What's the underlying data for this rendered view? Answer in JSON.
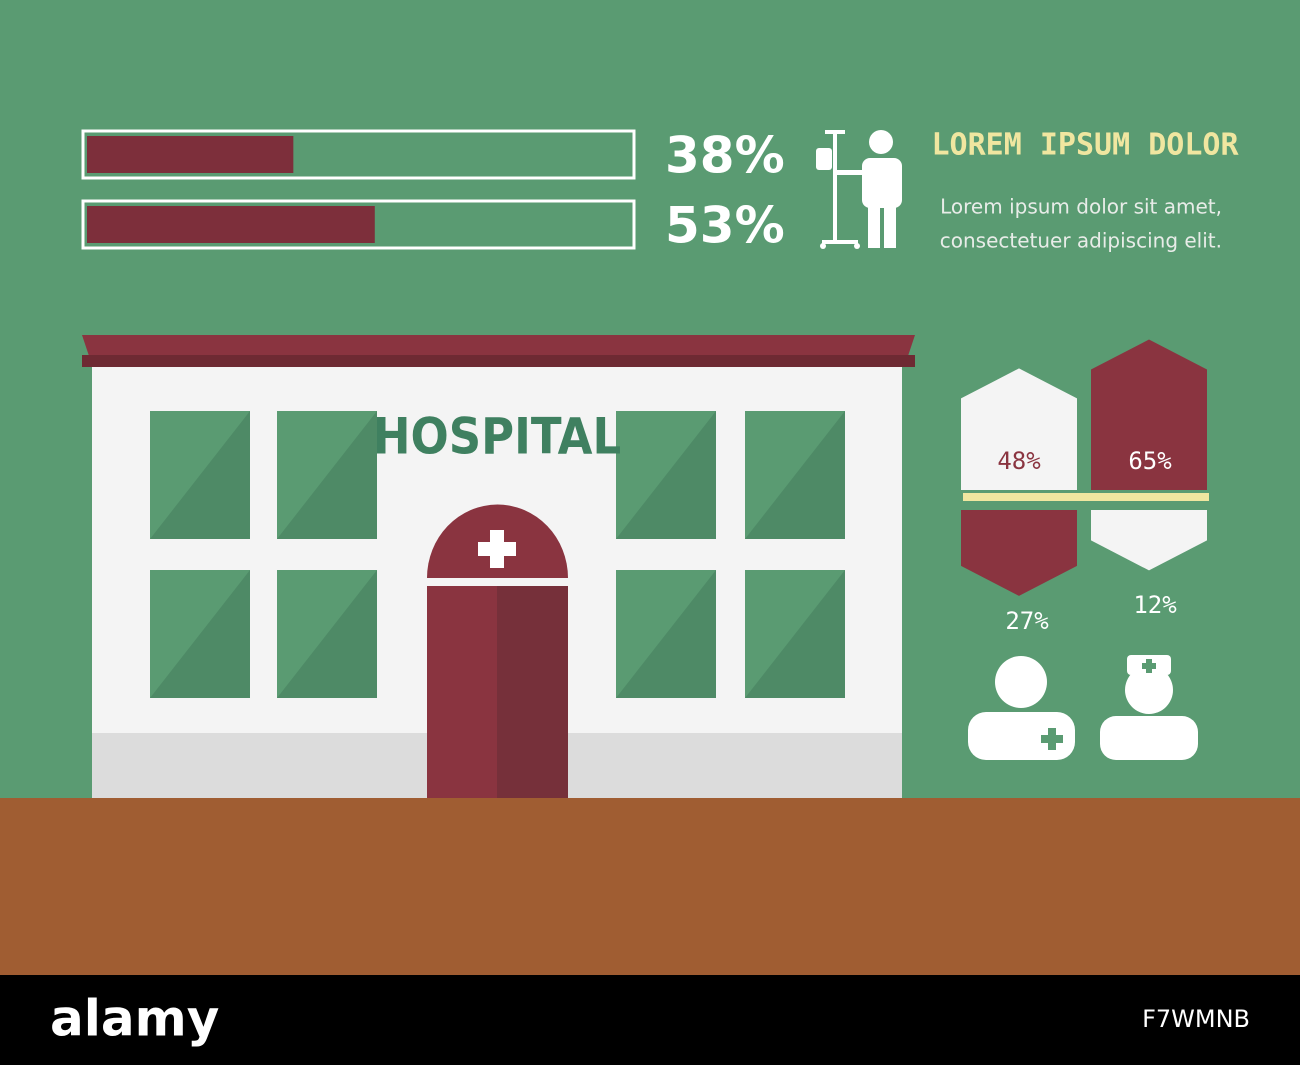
{
  "infographic": {
    "bars": [
      {
        "value": 38,
        "label": "38%"
      },
      {
        "value": 53,
        "label": "53%"
      }
    ],
    "heading": "LOREM IPSUM DOLOR",
    "body": [
      "Lorem ipsum dolor sit amet,",
      "consectetuer adipiscing elit."
    ],
    "sign": "HOSPITAL",
    "stats": [
      {
        "value": 48,
        "label": "48%"
      },
      {
        "value": 65,
        "label": "65%"
      },
      {
        "value": 27,
        "label": "27%"
      },
      {
        "value": 12,
        "label": "12%"
      }
    ],
    "footer": {
      "logo": "alamy",
      "id": "F7WMNB"
    }
  }
}
